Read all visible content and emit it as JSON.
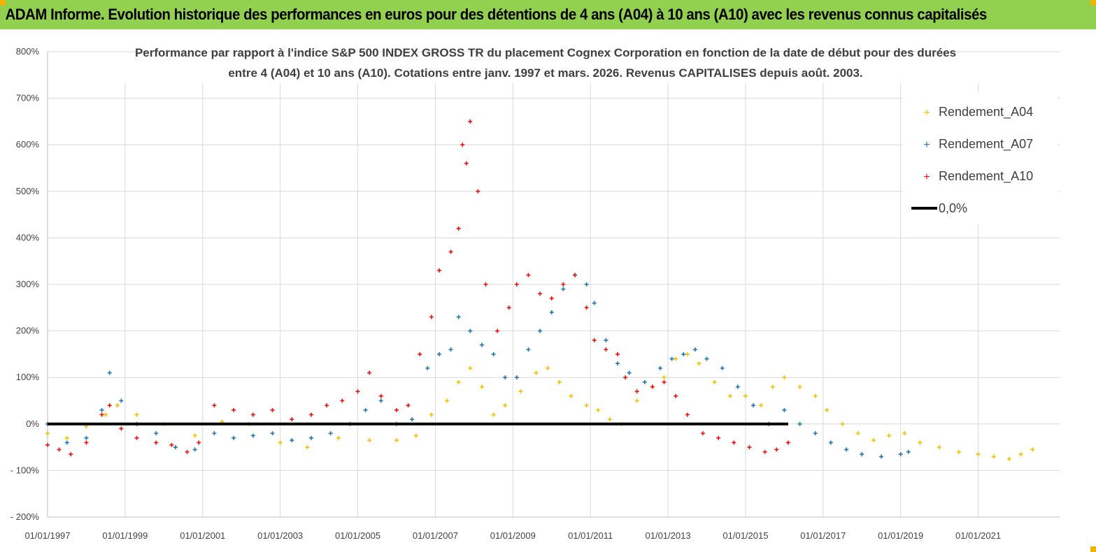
{
  "header": {
    "title": "ADAM Informe. Evolution historique des performances en euros pour des détentions de 4 ans (A04) à 10 ans (A10) avec les revenus connus capitalisés"
  },
  "chart_data": {
    "type": "scatter",
    "title_line1": "Performance par rapport à l'indice S&P 500 INDEX GROSS TR  du placement Cognex Corporation en fonction de la date de début pour des durées",
    "title_line2": "entre 4 (A04) et 10 ans (A10). Cotations entre janv. 1997 et mars. 2026. Revenus CAPITALISES depuis août. 2003.",
    "ylim": [
      -200,
      800
    ],
    "xlim": [
      1997.0,
      2023.1
    ],
    "y_ticks": [
      "- 200%",
      "- 100%",
      "0%",
      "100%",
      "200%",
      "300%",
      "400%",
      "500%",
      "600%",
      "700%",
      "800%"
    ],
    "x_ticks": [
      "01/01/1997",
      "01/01/1999",
      "01/01/2001",
      "01/01/2003",
      "01/01/2005",
      "01/01/2007",
      "01/01/2009",
      "01/01/2011",
      "01/01/2013",
      "01/01/2015",
      "01/01/2017",
      "01/01/2019",
      "01/01/2021"
    ],
    "legend": [
      "Rendement_A04",
      "Rendement_A07",
      "Rendement_A10",
      "0,0%"
    ],
    "colors": {
      "A04": "#f5c000",
      "A07": "#1f77b4",
      "A10": "#ee1111",
      "zero": "#000000"
    },
    "series": [
      {
        "name": "Rendement_A04",
        "x": [
          1997.0,
          1997.5,
          1998.0,
          1998.5,
          1998.8,
          1999.3,
          2000.0,
          2000.8,
          2001.5,
          2002.2,
          2003.0,
          2003.7,
          2004.5,
          2005.3,
          2006.0,
          2006.5,
          2006.9,
          2007.3,
          2007.6,
          2007.9,
          2008.2,
          2008.5,
          2008.8,
          2009.2,
          2009.6,
          2009.9,
          2010.2,
          2010.5,
          2010.9,
          2011.2,
          2011.5,
          2011.8,
          2012.2,
          2012.6,
          2012.9,
          2013.2,
          2013.5,
          2013.8,
          2014.2,
          2014.6,
          2015.0,
          2015.4,
          2015.7,
          2016.0,
          2016.4,
          2016.8,
          2017.1,
          2017.5,
          2017.9,
          2018.3,
          2018.7,
          2019.1,
          2019.5,
          2020.0,
          2020.5,
          2021.0,
          2021.4,
          2021.8,
          2022.1,
          2022.4
        ],
        "values": [
          -20,
          -30,
          -5,
          20,
          40,
          20,
          0,
          -25,
          5,
          0,
          -40,
          -50,
          -30,
          -35,
          -35,
          -25,
          20,
          50,
          90,
          120,
          80,
          20,
          40,
          70,
          110,
          120,
          90,
          60,
          40,
          30,
          10,
          0,
          50,
          80,
          100,
          140,
          150,
          130,
          90,
          60,
          60,
          40,
          80,
          100,
          80,
          60,
          30,
          0,
          -20,
          -35,
          -25,
          -20,
          -40,
          -50,
          -60,
          -65,
          -70,
          -75,
          -65,
          -55
        ]
      },
      {
        "name": "Rendement_A07",
        "x": [
          1997.0,
          1997.5,
          1998.0,
          1998.4,
          1998.6,
          1998.9,
          1999.3,
          1999.8,
          2000.3,
          2000.8,
          2001.3,
          2001.8,
          2002.3,
          2002.8,
          2003.3,
          2003.8,
          2004.3,
          2004.8,
          2005.2,
          2005.6,
          2006.0,
          2006.4,
          2006.8,
          2007.1,
          2007.4,
          2007.6,
          2007.9,
          2008.2,
          2008.5,
          2008.8,
          2009.1,
          2009.4,
          2009.7,
          2010.0,
          2010.3,
          2010.6,
          2010.9,
          2011.1,
          2011.4,
          2011.7,
          2012.0,
          2012.4,
          2012.8,
          2013.1,
          2013.4,
          2013.7,
          2014.0,
          2014.4,
          2014.8,
          2015.2,
          2015.6,
          2016.0,
          2016.4,
          2016.8,
          2017.2,
          2017.6,
          2018.0,
          2018.5,
          2019.0,
          2019.2
        ],
        "values": [
          0,
          -40,
          -30,
          30,
          110,
          50,
          0,
          -20,
          -50,
          -55,
          -20,
          -30,
          -25,
          -20,
          -35,
          -30,
          -20,
          0,
          30,
          50,
          0,
          10,
          120,
          150,
          160,
          230,
          200,
          170,
          150,
          100,
          100,
          160,
          200,
          240,
          290,
          320,
          300,
          260,
          180,
          130,
          110,
          90,
          120,
          140,
          150,
          160,
          140,
          120,
          80,
          40,
          0,
          30,
          0,
          -20,
          -40,
          -55,
          -65,
          -70,
          -65,
          -60
        ]
      },
      {
        "name": "Rendement_A10",
        "x": [
          1997.0,
          1997.3,
          1997.6,
          1998.0,
          1998.4,
          1998.6,
          1998.9,
          1999.3,
          1999.8,
          2000.2,
          2000.6,
          2000.9,
          2001.3,
          2001.8,
          2002.3,
          2002.8,
          2003.3,
          2003.8,
          2004.2,
          2004.6,
          2005.0,
          2005.3,
          2005.6,
          2006.0,
          2006.3,
          2006.6,
          2006.9,
          2007.1,
          2007.4,
          2007.6,
          2007.7,
          2007.8,
          2007.9,
          2008.1,
          2008.3,
          2008.6,
          2008.9,
          2009.1,
          2009.4,
          2009.7,
          2010.0,
          2010.3,
          2010.6,
          2010.9,
          2011.1,
          2011.4,
          2011.7,
          2011.9,
          2012.2,
          2012.6,
          2012.9,
          2013.2,
          2013.5,
          2013.9,
          2014.3,
          2014.7,
          2015.1,
          2015.5,
          2015.8,
          2016.1
        ],
        "values": [
          -45,
          -55,
          -65,
          -40,
          20,
          40,
          -10,
          -30,
          -40,
          -45,
          -60,
          -40,
          40,
          30,
          20,
          30,
          10,
          20,
          40,
          50,
          70,
          110,
          60,
          30,
          40,
          150,
          230,
          330,
          370,
          420,
          600,
          560,
          650,
          500,
          300,
          200,
          250,
          300,
          320,
          280,
          270,
          300,
          320,
          250,
          180,
          160,
          150,
          100,
          70,
          80,
          90,
          60,
          20,
          -20,
          -30,
          -40,
          -50,
          -60,
          -55,
          -40
        ]
      }
    ]
  }
}
